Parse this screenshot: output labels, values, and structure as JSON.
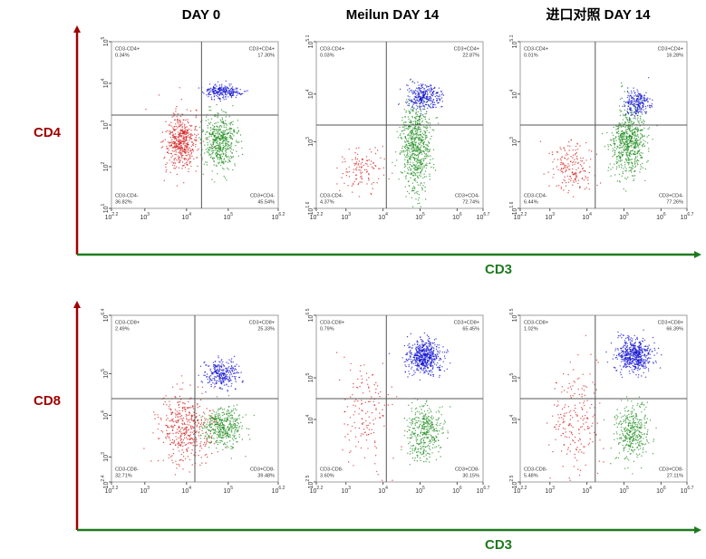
{
  "columns": [
    "DAY 0",
    "Meilun DAY 14",
    "进口对照 DAY 14"
  ],
  "row_labels": [
    "CD4",
    "CD8"
  ],
  "x_label": "CD3",
  "tick_base": "10",
  "rows": [
    {
      "panels": [
        {
          "xticks": [
            2.2,
            3,
            4,
            5,
            6.2
          ],
          "yticks": [
            1,
            2,
            3,
            4,
            5
          ],
          "quadrants": [
            {
              "name": "CD3-CD4+",
              "pct": "0.34%"
            },
            {
              "name": "CD3+CD4+",
              "pct": "17.30%"
            },
            {
              "name": "CD3-CD4-",
              "pct": "36.82%"
            },
            {
              "name": "CD3+CD4-",
              "pct": "45.54%"
            }
          ]
        },
        {
          "xticks": [
            2.2,
            3,
            4,
            5,
            6,
            6.7
          ],
          "yticks": [
            1.6,
            3,
            4,
            5.1
          ],
          "quadrants": [
            {
              "name": "CD3-CD4+",
              "pct": "0.03%"
            },
            {
              "name": "CD3+CD4+",
              "pct": "22.87%"
            },
            {
              "name": "CD3-CD4-",
              "pct": "4.37%"
            },
            {
              "name": "CD3+CD4-",
              "pct": "72.74%"
            }
          ]
        },
        {
          "xticks": [
            2.2,
            3,
            4,
            5,
            6,
            6.7
          ],
          "yticks": [
            1.6,
            3,
            4,
            5.1
          ],
          "quadrants": [
            {
              "name": "CD3-CD4+",
              "pct": "0.01%"
            },
            {
              "name": "CD3+CD4+",
              "pct": "16.28%"
            },
            {
              "name": "CD3-CD4-",
              "pct": "6.44%"
            },
            {
              "name": "CD3+CD4-",
              "pct": "77.26%"
            }
          ]
        }
      ]
    },
    {
      "panels": [
        {
          "xticks": [
            2.2,
            3,
            4,
            5,
            6.2
          ],
          "yticks": [
            2.4,
            3,
            4,
            5,
            6.4
          ],
          "quadrants": [
            {
              "name": "CD3-CD8+",
              "pct": "2.49%"
            },
            {
              "name": "CD3+CD8+",
              "pct": "25.33%"
            },
            {
              "name": "CD3-CD8-",
              "pct": "32.71%"
            },
            {
              "name": "CD3+CD8-",
              "pct": "39.48%"
            }
          ]
        },
        {
          "xticks": [
            2.2,
            3,
            4,
            5,
            6,
            6.7
          ],
          "yticks": [
            2.5,
            4,
            5,
            6.5
          ],
          "quadrants": [
            {
              "name": "CD3-CD8+",
              "pct": "0.79%"
            },
            {
              "name": "CD3+CD8+",
              "pct": "65.45%"
            },
            {
              "name": "CD3-CD8-",
              "pct": "3.60%"
            },
            {
              "name": "CD3+CD8-",
              "pct": "30.15%"
            }
          ]
        },
        {
          "xticks": [
            2.2,
            3,
            4,
            5,
            6,
            6.7
          ],
          "yticks": [
            2.5,
            4,
            5,
            6.5
          ],
          "quadrants": [
            {
              "name": "CD3-CD8+",
              "pct": "1.02%"
            },
            {
              "name": "CD3+CD8+",
              "pct": "66.39%"
            },
            {
              "name": "CD3-CD8-",
              "pct": "5.48%"
            },
            {
              "name": "CD3+CD8-",
              "pct": "27.11%"
            }
          ]
        }
      ]
    }
  ]
}
